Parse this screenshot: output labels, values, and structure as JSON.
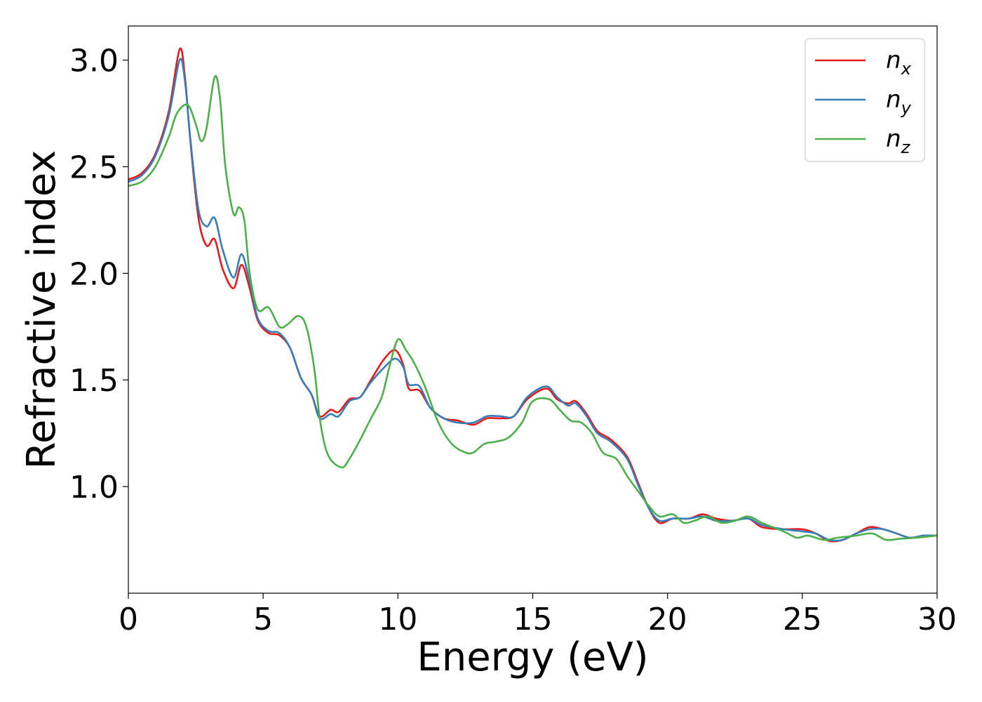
{
  "chart_data": {
    "type": "line",
    "title": "",
    "xlabel": "Energy (eV)",
    "ylabel": "Refractive index",
    "xlim": [
      0,
      30
    ],
    "ylim": [
      0.5,
      3.16
    ],
    "xticks": [
      "0",
      "5",
      "10",
      "15",
      "20",
      "25",
      "30"
    ],
    "yticks": [
      "1.0",
      "1.5",
      "2.0",
      "2.5",
      "3.0"
    ],
    "grid": false,
    "legend_position": "top-right",
    "series": [
      {
        "name": "n_x",
        "legend_base": "n",
        "legend_sub": "x",
        "color": "#e41a1c",
        "points": [
          [
            0,
            2.44
          ],
          [
            0.5,
            2.47
          ],
          [
            1.0,
            2.56
          ],
          [
            1.5,
            2.76
          ],
          [
            1.9,
            3.05
          ],
          [
            2.1,
            2.92
          ],
          [
            2.3,
            2.62
          ],
          [
            2.6,
            2.26
          ],
          [
            2.9,
            2.13
          ],
          [
            3.2,
            2.16
          ],
          [
            3.5,
            2.02
          ],
          [
            3.9,
            1.93
          ],
          [
            4.2,
            2.04
          ],
          [
            4.5,
            1.93
          ],
          [
            4.8,
            1.78
          ],
          [
            5.2,
            1.72
          ],
          [
            5.6,
            1.71
          ],
          [
            6.0,
            1.65
          ],
          [
            6.4,
            1.51
          ],
          [
            6.8,
            1.43
          ],
          [
            7.1,
            1.33
          ],
          [
            7.5,
            1.36
          ],
          [
            7.8,
            1.35
          ],
          [
            8.2,
            1.41
          ],
          [
            8.6,
            1.42
          ],
          [
            9.0,
            1.5
          ],
          [
            9.5,
            1.6
          ],
          [
            9.9,
            1.64
          ],
          [
            10.2,
            1.57
          ],
          [
            10.4,
            1.46
          ],
          [
            10.8,
            1.45
          ],
          [
            11.2,
            1.37
          ],
          [
            11.7,
            1.32
          ],
          [
            12.2,
            1.31
          ],
          [
            12.8,
            1.29
          ],
          [
            13.3,
            1.32
          ],
          [
            13.8,
            1.32
          ],
          [
            14.3,
            1.33
          ],
          [
            14.8,
            1.41
          ],
          [
            15.5,
            1.46
          ],
          [
            15.9,
            1.41
          ],
          [
            16.3,
            1.39
          ],
          [
            16.6,
            1.4
          ],
          [
            17.0,
            1.34
          ],
          [
            17.4,
            1.26
          ],
          [
            17.9,
            1.22
          ],
          [
            18.5,
            1.14
          ],
          [
            18.9,
            1.02
          ],
          [
            19.3,
            0.9
          ],
          [
            19.7,
            0.83
          ],
          [
            20.2,
            0.85
          ],
          [
            20.8,
            0.85
          ],
          [
            21.3,
            0.87
          ],
          [
            21.8,
            0.85
          ],
          [
            22.4,
            0.84
          ],
          [
            23.0,
            0.85
          ],
          [
            23.5,
            0.81
          ],
          [
            24.3,
            0.8
          ],
          [
            25.0,
            0.8
          ],
          [
            25.5,
            0.78
          ],
          [
            26.0,
            0.745
          ],
          [
            26.5,
            0.75
          ],
          [
            27.0,
            0.78
          ],
          [
            27.5,
            0.81
          ],
          [
            28.0,
            0.8
          ],
          [
            28.5,
            0.78
          ],
          [
            29.0,
            0.76
          ],
          [
            29.5,
            0.77
          ],
          [
            30.0,
            0.77
          ]
        ]
      },
      {
        "name": "n_y",
        "legend_base": "n",
        "legend_sub": "y",
        "color": "#377eb8",
        "points": [
          [
            0,
            2.43
          ],
          [
            0.5,
            2.46
          ],
          [
            1.0,
            2.55
          ],
          [
            1.5,
            2.74
          ],
          [
            1.9,
            3.0
          ],
          [
            2.1,
            2.9
          ],
          [
            2.3,
            2.63
          ],
          [
            2.6,
            2.3
          ],
          [
            2.9,
            2.22
          ],
          [
            3.2,
            2.26
          ],
          [
            3.5,
            2.11
          ],
          [
            3.9,
            1.98
          ],
          [
            4.2,
            2.09
          ],
          [
            4.5,
            1.96
          ],
          [
            4.8,
            1.79
          ],
          [
            5.2,
            1.73
          ],
          [
            5.6,
            1.72
          ],
          [
            6.0,
            1.65
          ],
          [
            6.4,
            1.51
          ],
          [
            6.8,
            1.43
          ],
          [
            7.1,
            1.32
          ],
          [
            7.5,
            1.34
          ],
          [
            7.8,
            1.33
          ],
          [
            8.2,
            1.4
          ],
          [
            8.6,
            1.42
          ],
          [
            9.0,
            1.49
          ],
          [
            9.5,
            1.56
          ],
          [
            9.9,
            1.6
          ],
          [
            10.2,
            1.56
          ],
          [
            10.4,
            1.48
          ],
          [
            10.8,
            1.47
          ],
          [
            11.2,
            1.37
          ],
          [
            11.7,
            1.32
          ],
          [
            12.2,
            1.3
          ],
          [
            12.8,
            1.3
          ],
          [
            13.3,
            1.33
          ],
          [
            13.8,
            1.33
          ],
          [
            14.3,
            1.33
          ],
          [
            14.8,
            1.42
          ],
          [
            15.5,
            1.47
          ],
          [
            15.9,
            1.42
          ],
          [
            16.3,
            1.38
          ],
          [
            16.6,
            1.39
          ],
          [
            17.0,
            1.33
          ],
          [
            17.4,
            1.25
          ],
          [
            17.9,
            1.21
          ],
          [
            18.5,
            1.13
          ],
          [
            18.9,
            1.01
          ],
          [
            19.3,
            0.9
          ],
          [
            19.7,
            0.84
          ],
          [
            20.2,
            0.85
          ],
          [
            20.8,
            0.85
          ],
          [
            21.3,
            0.86
          ],
          [
            21.8,
            0.84
          ],
          [
            22.4,
            0.84
          ],
          [
            23.0,
            0.85
          ],
          [
            23.5,
            0.82
          ],
          [
            24.3,
            0.8
          ],
          [
            25.0,
            0.79
          ],
          [
            25.5,
            0.78
          ],
          [
            26.0,
            0.75
          ],
          [
            26.5,
            0.75
          ],
          [
            27.0,
            0.78
          ],
          [
            27.5,
            0.8
          ],
          [
            28.0,
            0.8
          ],
          [
            28.5,
            0.78
          ],
          [
            29.0,
            0.76
          ],
          [
            29.5,
            0.77
          ],
          [
            30.0,
            0.77
          ]
        ]
      },
      {
        "name": "n_z",
        "legend_base": "n",
        "legend_sub": "z",
        "color": "#4daf4a",
        "points": [
          [
            0,
            2.41
          ],
          [
            0.5,
            2.43
          ],
          [
            1.0,
            2.5
          ],
          [
            1.5,
            2.64
          ],
          [
            1.8,
            2.75
          ],
          [
            2.2,
            2.79
          ],
          [
            2.5,
            2.7
          ],
          [
            2.7,
            2.62
          ],
          [
            2.9,
            2.68
          ],
          [
            3.2,
            2.92
          ],
          [
            3.4,
            2.82
          ],
          [
            3.6,
            2.5
          ],
          [
            3.9,
            2.28
          ],
          [
            4.1,
            2.31
          ],
          [
            4.3,
            2.25
          ],
          [
            4.5,
            2.0
          ],
          [
            4.8,
            1.83
          ],
          [
            5.2,
            1.84
          ],
          [
            5.6,
            1.75
          ],
          [
            5.9,
            1.76
          ],
          [
            6.3,
            1.8
          ],
          [
            6.6,
            1.75
          ],
          [
            6.9,
            1.55
          ],
          [
            7.1,
            1.32
          ],
          [
            7.4,
            1.15
          ],
          [
            7.9,
            1.09
          ],
          [
            8.2,
            1.13
          ],
          [
            8.6,
            1.22
          ],
          [
            9.0,
            1.32
          ],
          [
            9.4,
            1.42
          ],
          [
            9.7,
            1.57
          ],
          [
            10.0,
            1.69
          ],
          [
            10.3,
            1.64
          ],
          [
            10.6,
            1.58
          ],
          [
            11.0,
            1.47
          ],
          [
            11.5,
            1.3
          ],
          [
            12.0,
            1.2
          ],
          [
            12.5,
            1.16
          ],
          [
            12.8,
            1.16
          ],
          [
            13.2,
            1.2
          ],
          [
            13.6,
            1.21
          ],
          [
            14.1,
            1.23
          ],
          [
            14.6,
            1.3
          ],
          [
            15.0,
            1.4
          ],
          [
            15.6,
            1.41
          ],
          [
            16.0,
            1.36
          ],
          [
            16.4,
            1.31
          ],
          [
            16.8,
            1.3
          ],
          [
            17.2,
            1.25
          ],
          [
            17.6,
            1.16
          ],
          [
            18.1,
            1.13
          ],
          [
            18.5,
            1.05
          ],
          [
            18.9,
            0.98
          ],
          [
            19.3,
            0.91
          ],
          [
            19.7,
            0.86
          ],
          [
            20.2,
            0.87
          ],
          [
            20.6,
            0.83
          ],
          [
            21.0,
            0.84
          ],
          [
            21.5,
            0.86
          ],
          [
            22.0,
            0.83
          ],
          [
            22.5,
            0.84
          ],
          [
            23.0,
            0.86
          ],
          [
            23.5,
            0.83
          ],
          [
            24.3,
            0.79
          ],
          [
            24.8,
            0.76
          ],
          [
            25.2,
            0.77
          ],
          [
            25.8,
            0.75
          ],
          [
            26.3,
            0.76
          ],
          [
            27.0,
            0.77
          ],
          [
            27.6,
            0.78
          ],
          [
            28.1,
            0.75
          ],
          [
            28.6,
            0.755
          ],
          [
            29.2,
            0.76
          ],
          [
            30.0,
            0.77
          ]
        ]
      }
    ]
  }
}
